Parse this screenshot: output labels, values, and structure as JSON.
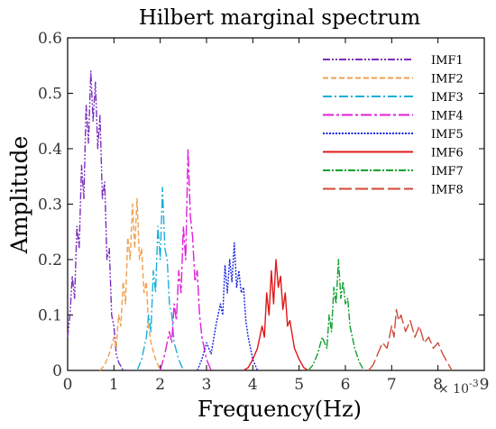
{
  "chart_data": {
    "type": "line",
    "title": "Hilbert  marginal spectrum",
    "xlabel": "Frequency(Hz)",
    "ylabel": "Amplitude",
    "x_multiplier_label": "× 10",
    "x_multiplier_exp": "-3",
    "xlim": [
      0,
      9
    ],
    "ylim": [
      0,
      0.6
    ],
    "xticks": [
      "0",
      "1",
      "2",
      "3",
      "4",
      "5",
      "6",
      "7",
      "8",
      "9"
    ],
    "yticks": [
      "0",
      "0.1",
      "0.2",
      "0.3",
      "0.4",
      "0.5",
      "0.6"
    ],
    "grid": false,
    "legend_position": "top-right",
    "series": [
      {
        "name": "IMF1",
        "color": "#7B2FBE",
        "dash": "8 2 2 2 2 2",
        "x": [
          0,
          0.05,
          0.1,
          0.15,
          0.2,
          0.25,
          0.3,
          0.35,
          0.4,
          0.45,
          0.5,
          0.55,
          0.6,
          0.65,
          0.7,
          0.75,
          0.8,
          0.85,
          0.9,
          0.95,
          1.0,
          1.05,
          1.1,
          1.2
        ],
        "y": [
          0.06,
          0.1,
          0.17,
          0.13,
          0.26,
          0.22,
          0.37,
          0.31,
          0.48,
          0.41,
          0.54,
          0.45,
          0.52,
          0.4,
          0.46,
          0.31,
          0.34,
          0.2,
          0.22,
          0.1,
          0.08,
          0.03,
          0.015,
          0.0
        ]
      },
      {
        "name": "IMF2",
        "color": "#F0A050",
        "dash": "6 3",
        "x": [
          0.7,
          0.8,
          0.9,
          1.0,
          1.05,
          1.1,
          1.15,
          1.2,
          1.25,
          1.3,
          1.35,
          1.4,
          1.45,
          1.5,
          1.55,
          1.6,
          1.65,
          1.7,
          1.75,
          1.8,
          1.9,
          2.0
        ],
        "y": [
          0.0,
          0.01,
          0.03,
          0.06,
          0.04,
          0.1,
          0.08,
          0.16,
          0.12,
          0.24,
          0.2,
          0.3,
          0.22,
          0.31,
          0.2,
          0.22,
          0.14,
          0.16,
          0.08,
          0.05,
          0.02,
          0.0
        ]
      },
      {
        "name": "IMF3",
        "color": "#1AAFD8",
        "dash": "10 3 2 3",
        "x": [
          1.5,
          1.6,
          1.7,
          1.75,
          1.8,
          1.85,
          1.9,
          1.95,
          2.0,
          2.05,
          2.1,
          2.15,
          2.2,
          2.25,
          2.3,
          2.4,
          2.5
        ],
        "y": [
          0.0,
          0.02,
          0.06,
          0.1,
          0.07,
          0.18,
          0.14,
          0.26,
          0.2,
          0.33,
          0.22,
          0.2,
          0.12,
          0.1,
          0.05,
          0.02,
          0.0
        ]
      },
      {
        "name": "IMF4",
        "color": "#E020D8",
        "dash": "12 3 3 3",
        "x": [
          2.0,
          2.1,
          2.2,
          2.25,
          2.3,
          2.35,
          2.4,
          2.45,
          2.5,
          2.55,
          2.6,
          2.65,
          2.7,
          2.75,
          2.8,
          2.85,
          2.9,
          3.0,
          3.1
        ],
        "y": [
          0.0,
          0.03,
          0.07,
          0.05,
          0.12,
          0.09,
          0.18,
          0.14,
          0.26,
          0.2,
          0.4,
          0.28,
          0.24,
          0.16,
          0.18,
          0.1,
          0.06,
          0.02,
          0.0
        ]
      },
      {
        "name": "IMF5",
        "color": "#1522E0",
        "dash": "2 1.5",
        "x": [
          2.8,
          2.9,
          3.0,
          3.1,
          3.2,
          3.3,
          3.35,
          3.4,
          3.45,
          3.5,
          3.55,
          3.6,
          3.65,
          3.7,
          3.75,
          3.8,
          3.85,
          3.9,
          4.0,
          4.1
        ],
        "y": [
          0.0,
          0.02,
          0.05,
          0.03,
          0.08,
          0.12,
          0.1,
          0.19,
          0.14,
          0.2,
          0.16,
          0.23,
          0.15,
          0.18,
          0.14,
          0.15,
          0.09,
          0.06,
          0.02,
          0.0
        ]
      },
      {
        "name": "IMF6",
        "color": "#E01818",
        "dash": "none",
        "x": [
          3.8,
          3.9,
          4.0,
          4.1,
          4.2,
          4.25,
          4.3,
          4.35,
          4.4,
          4.45,
          4.5,
          4.55,
          4.6,
          4.65,
          4.7,
          4.75,
          4.8,
          4.9,
          5.0,
          5.1,
          5.2
        ],
        "y": [
          0.0,
          0.005,
          0.02,
          0.04,
          0.08,
          0.06,
          0.14,
          0.1,
          0.18,
          0.12,
          0.2,
          0.15,
          0.17,
          0.11,
          0.14,
          0.08,
          0.09,
          0.04,
          0.02,
          0.005,
          0.0
        ]
      },
      {
        "name": "IMF7",
        "color": "#10A030",
        "dash": "8 2 2 2",
        "x": [
          5.2,
          5.3,
          5.4,
          5.5,
          5.6,
          5.65,
          5.7,
          5.75,
          5.8,
          5.85,
          5.9,
          5.95,
          6.0,
          6.05,
          6.1,
          6.2,
          6.3,
          6.4
        ],
        "y": [
          0.0,
          0.01,
          0.03,
          0.06,
          0.04,
          0.1,
          0.07,
          0.15,
          0.12,
          0.2,
          0.13,
          0.16,
          0.12,
          0.13,
          0.08,
          0.04,
          0.015,
          0.0
        ]
      },
      {
        "name": "IMF8",
        "color": "#D04A38",
        "dash": "14 4",
        "x": [
          6.5,
          6.6,
          6.7,
          6.8,
          6.9,
          7.0,
          7.05,
          7.1,
          7.15,
          7.2,
          7.3,
          7.4,
          7.5,
          7.6,
          7.7,
          7.8,
          7.9,
          8.0,
          8.1,
          8.2,
          8.3
        ],
        "y": [
          0.0,
          0.01,
          0.03,
          0.05,
          0.04,
          0.08,
          0.06,
          0.11,
          0.09,
          0.1,
          0.07,
          0.09,
          0.06,
          0.08,
          0.05,
          0.06,
          0.04,
          0.05,
          0.03,
          0.015,
          0.0
        ]
      }
    ]
  }
}
